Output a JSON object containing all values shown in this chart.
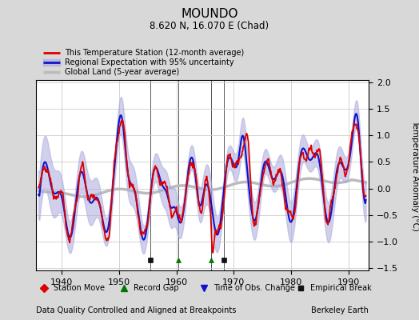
{
  "title": "MOUNDO",
  "subtitle": "8.620 N, 16.070 E (Chad)",
  "xlabel_bottom": "Data Quality Controlled and Aligned at Breakpoints",
  "xlabel_right": "Berkeley Earth",
  "ylabel": "Temperature Anomaly (°C)",
  "xlim": [
    1935.5,
    1993.5
  ],
  "ylim": [
    -1.55,
    2.05
  ],
  "yticks": [
    -1.5,
    -1.0,
    -0.5,
    0,
    0.5,
    1.0,
    1.5,
    2.0
  ],
  "xticks": [
    1940,
    1950,
    1960,
    1970,
    1980,
    1990
  ],
  "bg_color": "#d8d8d8",
  "plot_bg_color": "#ffffff",
  "grid_color": "#cccccc",
  "station_line_color": "#dd0000",
  "regional_line_color": "#1111cc",
  "regional_fill_color": "#aaaadd",
  "global_line_color": "#bbbbbb",
  "vline_color": "#555555",
  "marker_events": [
    {
      "year": 1955.5,
      "marker": "s",
      "color": "#111111"
    },
    {
      "year": 1960.3,
      "marker": "^",
      "color": "#007700"
    },
    {
      "year": 1966.0,
      "marker": "^",
      "color": "#007700"
    },
    {
      "year": 1968.3,
      "marker": "s",
      "color": "#111111"
    }
  ],
  "vline_years": [
    1955.5,
    1960.3,
    1966.0,
    1968.3
  ]
}
